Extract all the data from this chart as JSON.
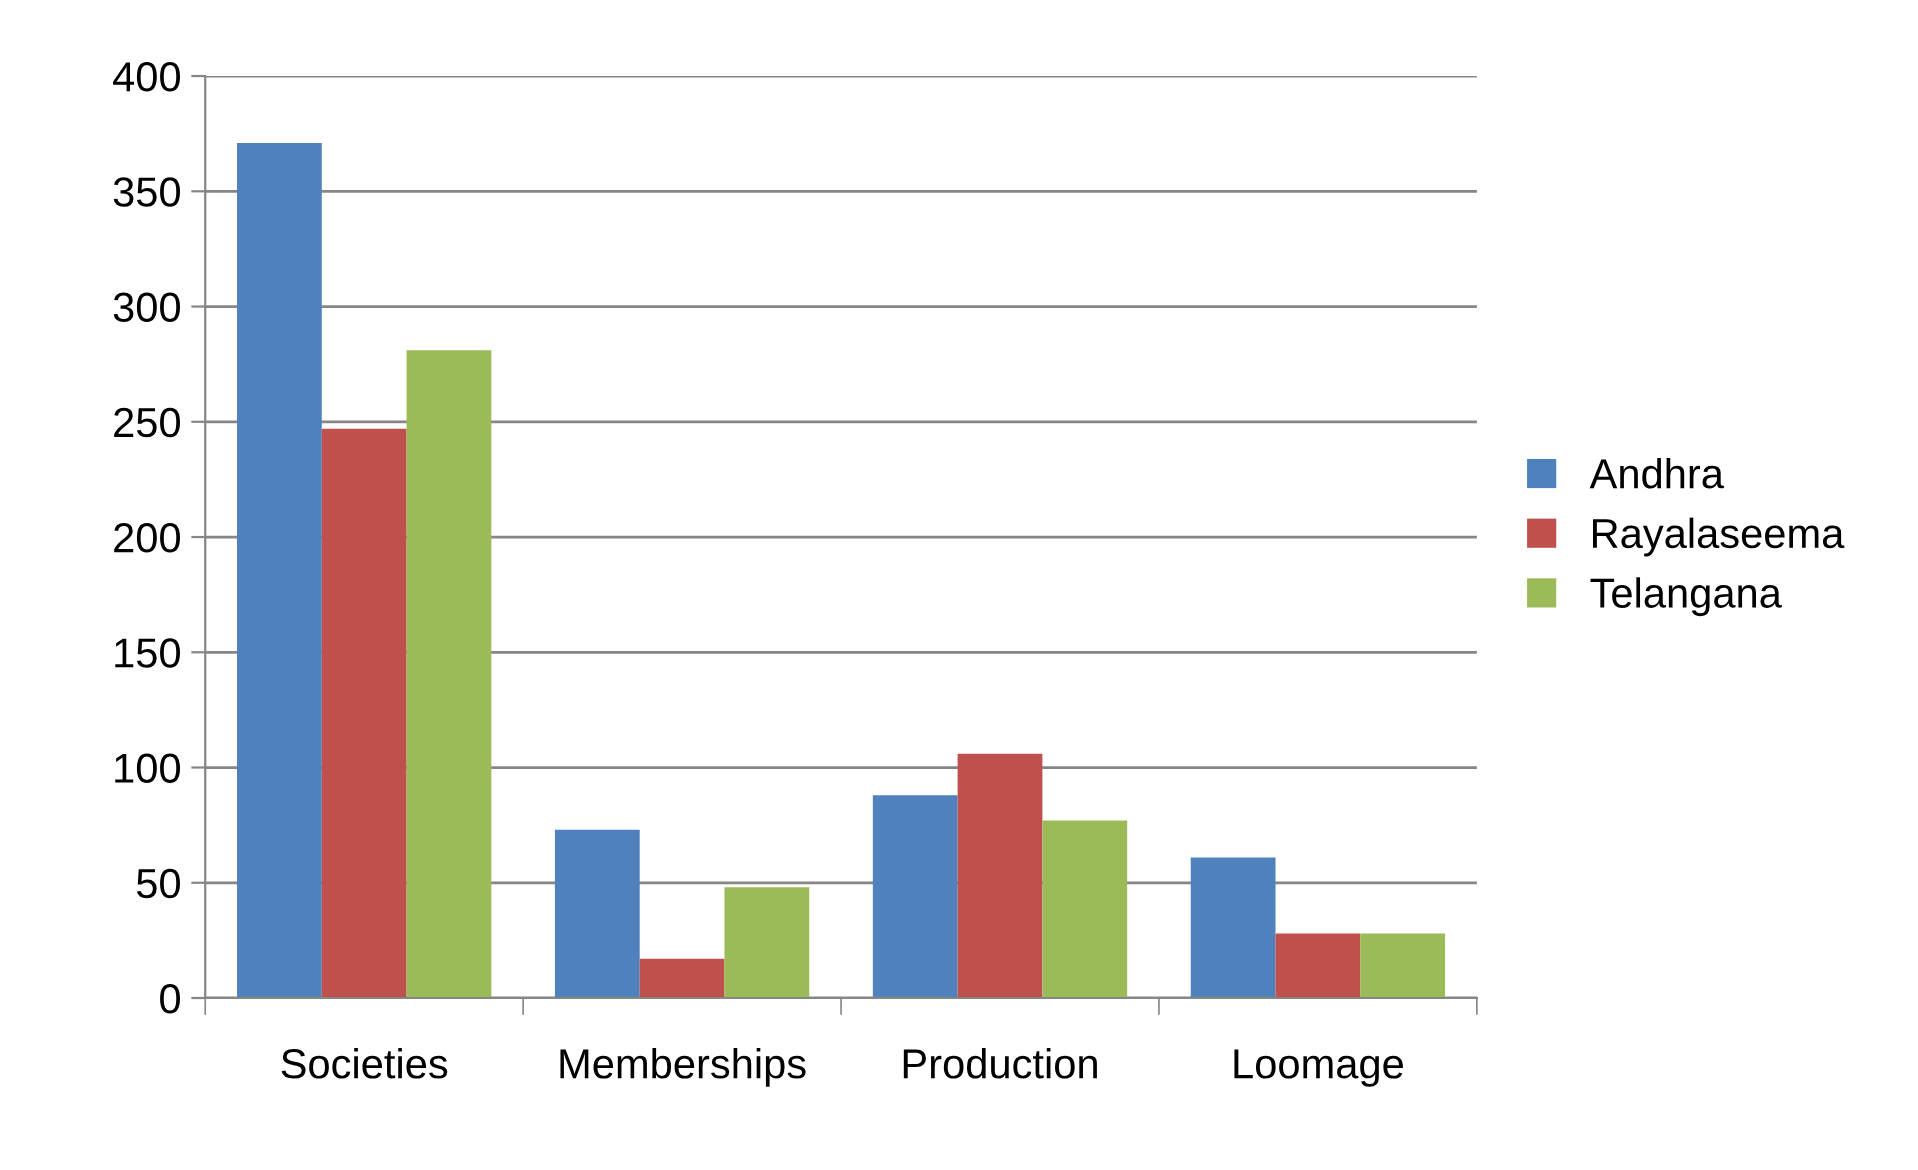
{
  "chart_data": {
    "type": "bar",
    "categories": [
      "Societies",
      "Memberships",
      "Production",
      "Loomage"
    ],
    "series": [
      {
        "name": "Andhra",
        "color": "#4f81bd",
        "values": [
          371,
          73,
          88,
          61
        ]
      },
      {
        "name": "Rayalaseema",
        "color": "#c0504d",
        "values": [
          247,
          17,
          106,
          28
        ]
      },
      {
        "name": "Telangana",
        "color": "#9bbb59",
        "values": [
          281,
          48,
          77,
          28
        ]
      }
    ],
    "ylim": [
      0,
      400
    ],
    "yticks": [
      0,
      50,
      100,
      150,
      200,
      250,
      300,
      350,
      400
    ],
    "grid": "y",
    "legend": "right"
  }
}
